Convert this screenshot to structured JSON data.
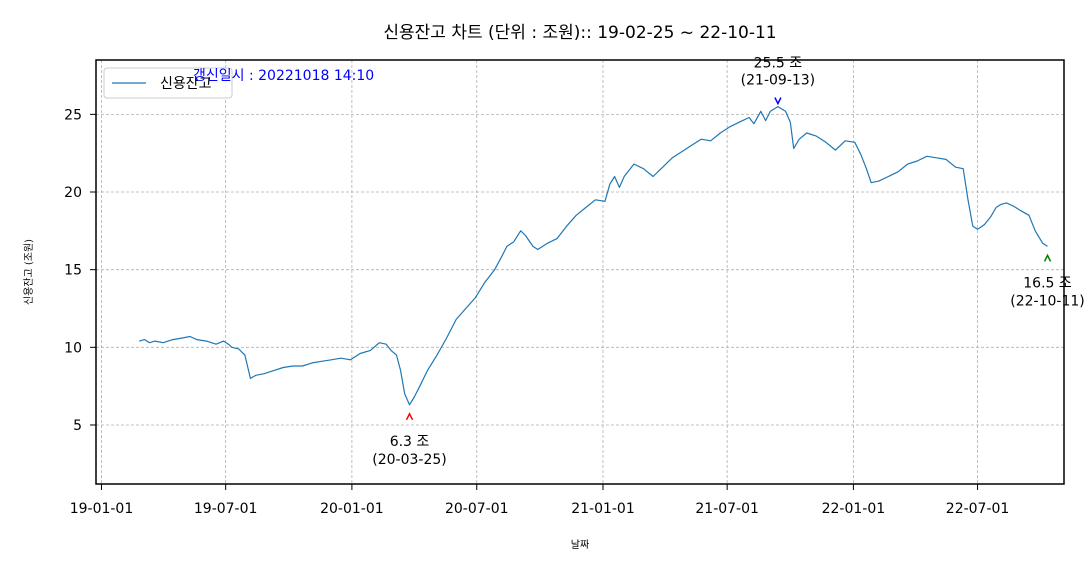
{
  "chart_data": {
    "type": "line",
    "title": "신용잔고 차트 (단위 : 조원):: 19-02-25 ~ 22-10-11",
    "xlabel": "날짜",
    "ylabel": "신용잔고 (조원)",
    "update_note": "갱신일시 : 20221018 14:10",
    "legend": {
      "label": "신용잔고",
      "position": "upper-left"
    },
    "grid": true,
    "x_domain": [
      "2018-12-24",
      "2022-11-04"
    ],
    "ylim": [
      1.2,
      28.5
    ],
    "y_ticks": [
      "5",
      "10",
      "15",
      "20",
      "25"
    ],
    "x_ticks": [
      {
        "date": "2019-01-01",
        "label": "19-01-01"
      },
      {
        "date": "2019-07-01",
        "label": "19-07-01"
      },
      {
        "date": "2020-01-01",
        "label": "20-01-01"
      },
      {
        "date": "2020-07-01",
        "label": "20-07-01"
      },
      {
        "date": "2021-01-01",
        "label": "21-01-01"
      },
      {
        "date": "2021-07-01",
        "label": "21-07-01"
      },
      {
        "date": "2022-01-01",
        "label": "22-01-01"
      },
      {
        "date": "2022-07-01",
        "label": "22-07-01"
      }
    ],
    "colors": {
      "line": "#1f77b4",
      "max_marker": "#0000ff",
      "min_marker": "#ff0000",
      "last_marker": "#008000"
    },
    "series": [
      {
        "name": "신용잔고",
        "points": [
          [
            "2019-02-25",
            10.4
          ],
          [
            "2019-03-05",
            10.5
          ],
          [
            "2019-03-12",
            10.3
          ],
          [
            "2019-03-20",
            10.4
          ],
          [
            "2019-04-01",
            10.3
          ],
          [
            "2019-04-15",
            10.5
          ],
          [
            "2019-04-29",
            10.6
          ],
          [
            "2019-05-10",
            10.7
          ],
          [
            "2019-05-20",
            10.5
          ],
          [
            "2019-06-03",
            10.4
          ],
          [
            "2019-06-17",
            10.2
          ],
          [
            "2019-06-28",
            10.4
          ],
          [
            "2019-07-05",
            10.2
          ],
          [
            "2019-07-10",
            10.0
          ],
          [
            "2019-07-20",
            9.9
          ],
          [
            "2019-07-29",
            9.5
          ],
          [
            "2019-08-06",
            8.0
          ],
          [
            "2019-08-14",
            8.2
          ],
          [
            "2019-08-26",
            8.3
          ],
          [
            "2019-09-09",
            8.5
          ],
          [
            "2019-09-23",
            8.7
          ],
          [
            "2019-10-07",
            8.8
          ],
          [
            "2019-10-21",
            8.8
          ],
          [
            "2019-11-04",
            9.0
          ],
          [
            "2019-11-18",
            9.1
          ],
          [
            "2019-12-02",
            9.2
          ],
          [
            "2019-12-16",
            9.3
          ],
          [
            "2019-12-30",
            9.2
          ],
          [
            "2020-01-13",
            9.6
          ],
          [
            "2020-01-28",
            9.8
          ],
          [
            "2020-02-10",
            10.3
          ],
          [
            "2020-02-20",
            10.2
          ],
          [
            "2020-02-27",
            9.8
          ],
          [
            "2020-03-06",
            9.5
          ],
          [
            "2020-03-12",
            8.5
          ],
          [
            "2020-03-18",
            7.0
          ],
          [
            "2020-03-25",
            6.3
          ],
          [
            "2020-04-01",
            6.8
          ],
          [
            "2020-04-09",
            7.5
          ],
          [
            "2020-04-20",
            8.5
          ],
          [
            "2020-05-04",
            9.5
          ],
          [
            "2020-05-18",
            10.6
          ],
          [
            "2020-06-01",
            11.8
          ],
          [
            "2020-06-15",
            12.5
          ],
          [
            "2020-06-29",
            13.2
          ],
          [
            "2020-07-13",
            14.2
          ],
          [
            "2020-07-27",
            15.0
          ],
          [
            "2020-08-06",
            15.8
          ],
          [
            "2020-08-14",
            16.5
          ],
          [
            "2020-08-24",
            16.8
          ],
          [
            "2020-09-03",
            17.5
          ],
          [
            "2020-09-10",
            17.2
          ],
          [
            "2020-09-21",
            16.5
          ],
          [
            "2020-09-28",
            16.3
          ],
          [
            "2020-10-12",
            16.7
          ],
          [
            "2020-10-26",
            17.0
          ],
          [
            "2020-11-09",
            17.8
          ],
          [
            "2020-11-23",
            18.5
          ],
          [
            "2020-12-07",
            19.0
          ],
          [
            "2020-12-21",
            19.5
          ],
          [
            "2021-01-04",
            19.4
          ],
          [
            "2021-01-11",
            20.5
          ],
          [
            "2021-01-18",
            21.0
          ],
          [
            "2021-01-25",
            20.3
          ],
          [
            "2021-02-01",
            21.0
          ],
          [
            "2021-02-15",
            21.8
          ],
          [
            "2021-03-01",
            21.5
          ],
          [
            "2021-03-15",
            21.0
          ],
          [
            "2021-03-29",
            21.6
          ],
          [
            "2021-04-12",
            22.2
          ],
          [
            "2021-04-26",
            22.6
          ],
          [
            "2021-05-10",
            23.0
          ],
          [
            "2021-05-24",
            23.4
          ],
          [
            "2021-06-07",
            23.3
          ],
          [
            "2021-06-21",
            23.8
          ],
          [
            "2021-07-05",
            24.2
          ],
          [
            "2021-07-19",
            24.5
          ],
          [
            "2021-08-02",
            24.8
          ],
          [
            "2021-08-09",
            24.4
          ],
          [
            "2021-08-19",
            25.2
          ],
          [
            "2021-08-26",
            24.6
          ],
          [
            "2021-09-02",
            25.2
          ],
          [
            "2021-09-13",
            25.5
          ],
          [
            "2021-09-24",
            25.2
          ],
          [
            "2021-10-01",
            24.5
          ],
          [
            "2021-10-06",
            22.8
          ],
          [
            "2021-10-14",
            23.4
          ],
          [
            "2021-10-25",
            23.8
          ],
          [
            "2021-11-08",
            23.6
          ],
          [
            "2021-11-22",
            23.2
          ],
          [
            "2021-12-06",
            22.7
          ],
          [
            "2021-12-20",
            23.3
          ],
          [
            "2022-01-03",
            23.2
          ],
          [
            "2022-01-12",
            22.4
          ],
          [
            "2022-01-20",
            21.5
          ],
          [
            "2022-01-27",
            20.6
          ],
          [
            "2022-02-07",
            20.7
          ],
          [
            "2022-02-21",
            21.0
          ],
          [
            "2022-03-07",
            21.3
          ],
          [
            "2022-03-21",
            21.8
          ],
          [
            "2022-04-04",
            22.0
          ],
          [
            "2022-04-18",
            22.3
          ],
          [
            "2022-05-02",
            22.2
          ],
          [
            "2022-05-16",
            22.1
          ],
          [
            "2022-05-30",
            21.6
          ],
          [
            "2022-06-10",
            21.5
          ],
          [
            "2022-06-17",
            19.5
          ],
          [
            "2022-06-24",
            17.8
          ],
          [
            "2022-07-01",
            17.6
          ],
          [
            "2022-07-11",
            17.9
          ],
          [
            "2022-07-20",
            18.4
          ],
          [
            "2022-07-28",
            19.0
          ],
          [
            "2022-08-04",
            19.2
          ],
          [
            "2022-08-12",
            19.3
          ],
          [
            "2022-08-22",
            19.1
          ],
          [
            "2022-09-02",
            18.8
          ],
          [
            "2022-09-14",
            18.5
          ],
          [
            "2022-09-23",
            17.5
          ],
          [
            "2022-10-04",
            16.7
          ],
          [
            "2022-10-11",
            16.5
          ]
        ]
      }
    ],
    "annotations": [
      {
        "date": "2021-09-13",
        "value": 25.5,
        "label": "25.5 조",
        "sublabel": "(21-09-13)",
        "kind": "max"
      },
      {
        "date": "2020-03-25",
        "value": 6.3,
        "label": "6.3 조",
        "sublabel": "(20-03-25)",
        "kind": "min"
      },
      {
        "date": "2022-10-11",
        "value": 16.5,
        "label": "16.5 조",
        "sublabel": "(22-10-11)",
        "kind": "last"
      }
    ]
  }
}
